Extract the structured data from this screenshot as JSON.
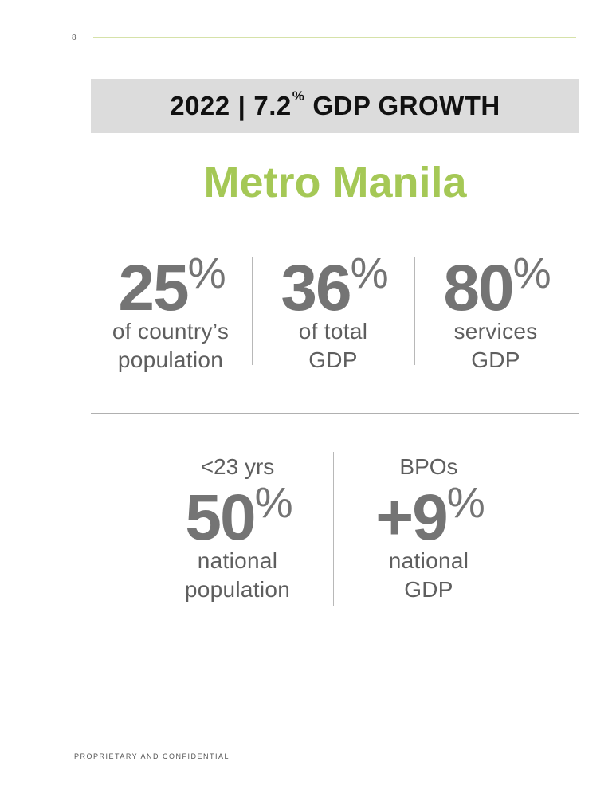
{
  "page": {
    "number": "8",
    "footer": "PROPRIETARY AND CONFIDENTIAL"
  },
  "banner": {
    "year": "2022",
    "separator": "|",
    "growth_value": "7.2",
    "growth_unit": "%",
    "growth_label": "GDP GROWTH",
    "background_color": "#dcdcdc"
  },
  "headline": {
    "city": "Metro Manila",
    "color": "#a5c856"
  },
  "stats_row1": [
    {
      "value": "25",
      "unit": "%",
      "line1": "of country’s",
      "line2": "population"
    },
    {
      "value": "36",
      "unit": "%",
      "line1": "of total",
      "line2": "GDP"
    },
    {
      "value": "80",
      "unit": "%",
      "line1": "services",
      "line2": "GDP"
    }
  ],
  "stats_row2": [
    {
      "prefix": "<23 yrs",
      "value": "50",
      "unit": "%",
      "line1": "national",
      "line2": "population"
    },
    {
      "prefix": "BPOs",
      "value": "+9",
      "unit": "%",
      "line1": "national",
      "line2": "GDP"
    }
  ]
}
